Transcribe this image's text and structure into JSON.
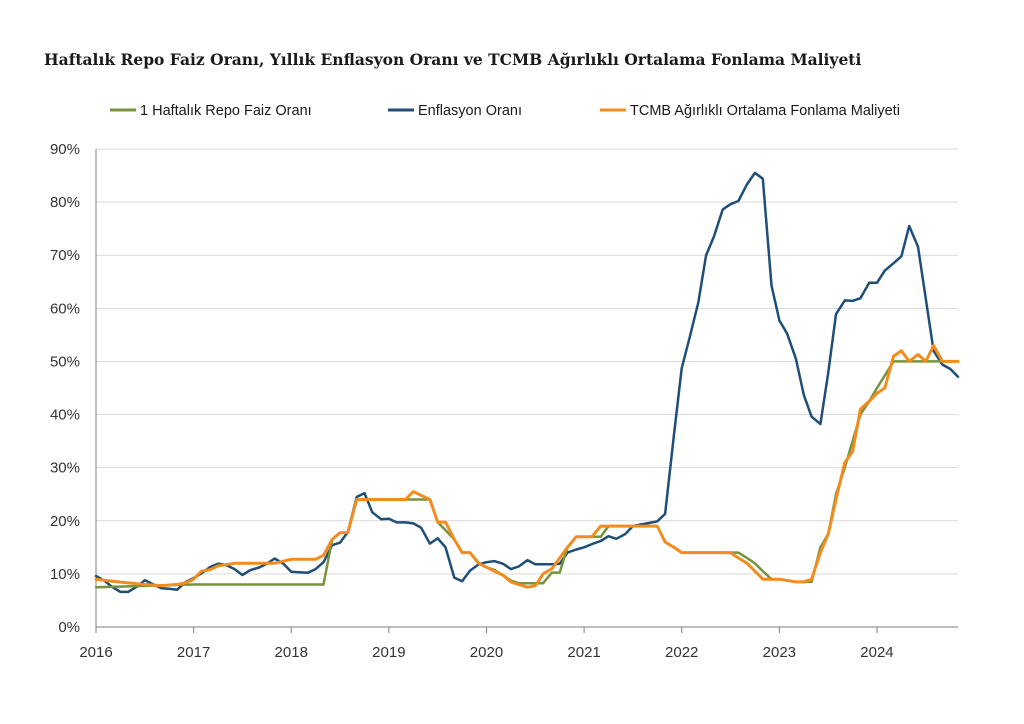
{
  "chart_data": {
    "type": "line",
    "title": "Haftalık Repo Faiz Oranı, Yıllık Enflasyon Oranı ve TCMB Ağırlıklı Ortalama Fonlama Maliyeti",
    "xlabel": "",
    "ylabel": "",
    "x_ticks": [
      "2016",
      "2017",
      "2018",
      "2019",
      "2020",
      "2021",
      "2022",
      "2023",
      "2024"
    ],
    "y_ticks": [
      "0%",
      "10%",
      "20%",
      "30%",
      "40%",
      "50%",
      "60%",
      "70%",
      "80%",
      "90%"
    ],
    "xlim": [
      2016.0,
      2024.83
    ],
    "ylim": [
      0,
      90
    ],
    "grid": "horizontal",
    "legend_position": "top",
    "series": [
      {
        "name": "1 Haftalık Repo Faiz Oranı",
        "color": "#77933C",
        "x": [
          2016.0,
          2017.0,
          2018.0,
          2018.33,
          2018.42,
          2018.5,
          2018.58,
          2018.67,
          2018.75,
          2019.0,
          2019.42,
          2019.5,
          2019.67,
          2019.75,
          2019.83,
          2019.92,
          2020.0,
          2020.08,
          2020.17,
          2020.25,
          2020.33,
          2020.42,
          2020.5,
          2020.58,
          2020.67,
          2020.75,
          2020.83,
          2020.92,
          2021.0,
          2021.17,
          2021.25,
          2021.75,
          2021.83,
          2021.92,
          2022.0,
          2022.58,
          2022.67,
          2022.75,
          2022.83,
          2022.92,
          2023.0,
          2023.17,
          2023.33,
          2023.42,
          2023.5,
          2023.58,
          2023.67,
          2023.75,
          2023.83,
          2023.92,
          2024.0,
          2024.17,
          2024.83
        ],
        "values": [
          7.5,
          8.0,
          8.0,
          8.0,
          16.5,
          17.75,
          17.75,
          24.0,
          24.0,
          24.0,
          24.0,
          19.75,
          16.5,
          14.0,
          14.0,
          12.0,
          11.25,
          10.75,
          9.75,
          8.75,
          8.25,
          8.25,
          8.25,
          8.25,
          10.25,
          10.25,
          15.0,
          17.0,
          17.0,
          17.0,
          19.0,
          19.0,
          16.0,
          15.0,
          14.0,
          14.0,
          13.0,
          12.0,
          10.5,
          9.0,
          9.0,
          8.5,
          8.5,
          15.0,
          17.5,
          25.0,
          30.0,
          35.0,
          40.0,
          42.5,
          45.0,
          50.0,
          50.0
        ]
      },
      {
        "name": "Enflasyon Oranı",
        "color": "#1F4E79",
        "x": [
          2016.0,
          2016.08,
          2016.17,
          2016.25,
          2016.33,
          2016.42,
          2016.5,
          2016.58,
          2016.67,
          2016.75,
          2016.83,
          2016.92,
          2017.0,
          2017.08,
          2017.17,
          2017.25,
          2017.33,
          2017.42,
          2017.5,
          2017.58,
          2017.67,
          2017.75,
          2017.83,
          2017.92,
          2018.0,
          2018.08,
          2018.17,
          2018.25,
          2018.33,
          2018.42,
          2018.5,
          2018.58,
          2018.67,
          2018.75,
          2018.83,
          2018.92,
          2019.0,
          2019.08,
          2019.17,
          2019.25,
          2019.33,
          2019.42,
          2019.5,
          2019.58,
          2019.67,
          2019.75,
          2019.83,
          2019.92,
          2020.0,
          2020.08,
          2020.17,
          2020.25,
          2020.33,
          2020.42,
          2020.5,
          2020.58,
          2020.67,
          2020.75,
          2020.83,
          2020.92,
          2021.0,
          2021.08,
          2021.17,
          2021.25,
          2021.33,
          2021.42,
          2021.5,
          2021.58,
          2021.67,
          2021.75,
          2021.83,
          2021.92,
          2022.0,
          2022.08,
          2022.17,
          2022.25,
          2022.33,
          2022.42,
          2022.5,
          2022.58,
          2022.67,
          2022.75,
          2022.83,
          2022.92,
          2023.0,
          2023.08,
          2023.17,
          2023.25,
          2023.33,
          2023.42,
          2023.5,
          2023.58,
          2023.67,
          2023.75,
          2023.83,
          2023.92,
          2024.0,
          2024.08,
          2024.17,
          2024.25,
          2024.33,
          2024.42,
          2024.5,
          2024.58,
          2024.67,
          2024.75,
          2024.83
        ],
        "values": [
          9.6,
          8.8,
          7.5,
          6.6,
          6.6,
          7.6,
          8.8,
          8.1,
          7.3,
          7.2,
          7.0,
          8.5,
          9.2,
          10.1,
          11.3,
          11.9,
          11.7,
          10.9,
          9.8,
          10.7,
          11.2,
          11.9,
          12.9,
          11.9,
          10.4,
          10.3,
          10.2,
          10.9,
          12.2,
          15.4,
          15.9,
          17.9,
          24.5,
          25.2,
          21.6,
          20.3,
          20.4,
          19.7,
          19.7,
          19.5,
          18.7,
          15.7,
          16.7,
          15.0,
          9.3,
          8.6,
          10.6,
          11.8,
          12.2,
          12.4,
          11.9,
          10.9,
          11.4,
          12.6,
          11.8,
          11.8,
          11.8,
          11.9,
          14.0,
          14.6,
          15.0,
          15.6,
          16.2,
          17.1,
          16.6,
          17.5,
          19.0,
          19.3,
          19.6,
          19.9,
          21.3,
          36.1,
          48.7,
          54.4,
          61.1,
          70.0,
          73.5,
          78.6,
          79.6,
          80.2,
          83.4,
          85.5,
          84.4,
          64.3,
          57.7,
          55.2,
          50.5,
          43.7,
          39.6,
          38.2,
          47.8,
          58.9,
          61.5,
          61.4,
          61.9,
          64.8,
          64.8,
          67.1,
          68.5,
          69.8,
          75.5,
          71.6,
          61.8,
          51.97,
          49.4,
          48.6,
          47.1
        ]
      },
      {
        "name": "TCMB Ağırlıklı Ortalama Fonlama Maliyeti",
        "color": "#F28C1E",
        "x": [
          2016.0,
          2016.17,
          2016.33,
          2016.5,
          2016.67,
          2016.83,
          2016.92,
          2017.0,
          2017.08,
          2017.17,
          2017.25,
          2017.42,
          2017.67,
          2017.83,
          2018.0,
          2018.17,
          2018.25,
          2018.33,
          2018.42,
          2018.5,
          2018.58,
          2018.67,
          2018.83,
          2019.0,
          2019.08,
          2019.17,
          2019.25,
          2019.42,
          2019.5,
          2019.58,
          2019.67,
          2019.75,
          2019.83,
          2019.92,
          2020.0,
          2020.08,
          2020.17,
          2020.25,
          2020.33,
          2020.42,
          2020.5,
          2020.58,
          2020.67,
          2020.75,
          2020.83,
          2020.92,
          2021.0,
          2021.08,
          2021.17,
          2021.25,
          2021.75,
          2021.83,
          2021.92,
          2022.0,
          2022.33,
          2022.42,
          2022.5,
          2022.58,
          2022.67,
          2022.75,
          2022.83,
          2022.92,
          2023.0,
          2023.17,
          2023.25,
          2023.33,
          2023.42,
          2023.5,
          2023.58,
          2023.67,
          2023.75,
          2023.83,
          2023.92,
          2024.0,
          2024.08,
          2024.17,
          2024.25,
          2024.33,
          2024.42,
          2024.5,
          2024.58,
          2024.67,
          2024.75,
          2024.83
        ],
        "values": [
          9.0,
          8.6,
          8.3,
          8.0,
          7.8,
          8.0,
          8.3,
          9.0,
          10.5,
          10.8,
          11.5,
          12.0,
          12.0,
          12.0,
          12.75,
          12.75,
          12.75,
          13.5,
          16.5,
          17.75,
          17.8,
          24.0,
          24.0,
          24.0,
          24.0,
          24.0,
          25.5,
          24.0,
          19.75,
          19.75,
          16.5,
          14.0,
          14.0,
          12.0,
          11.25,
          10.5,
          9.75,
          8.5,
          8.0,
          7.5,
          7.75,
          10.0,
          11.0,
          13.0,
          15.0,
          17.0,
          17.0,
          17.0,
          19.0,
          19.0,
          19.0,
          16.0,
          15.0,
          14.0,
          14.0,
          14.0,
          14.0,
          13.0,
          12.0,
          10.5,
          9.0,
          9.0,
          9.0,
          8.5,
          8.5,
          9.0,
          14.0,
          17.5,
          24.0,
          31.0,
          33.0,
          41.0,
          42.5,
          44.0,
          45.0,
          51.0,
          52.0,
          50.0,
          51.3,
          50.0,
          53.0,
          50.0,
          50.0,
          50.0
        ]
      }
    ]
  }
}
